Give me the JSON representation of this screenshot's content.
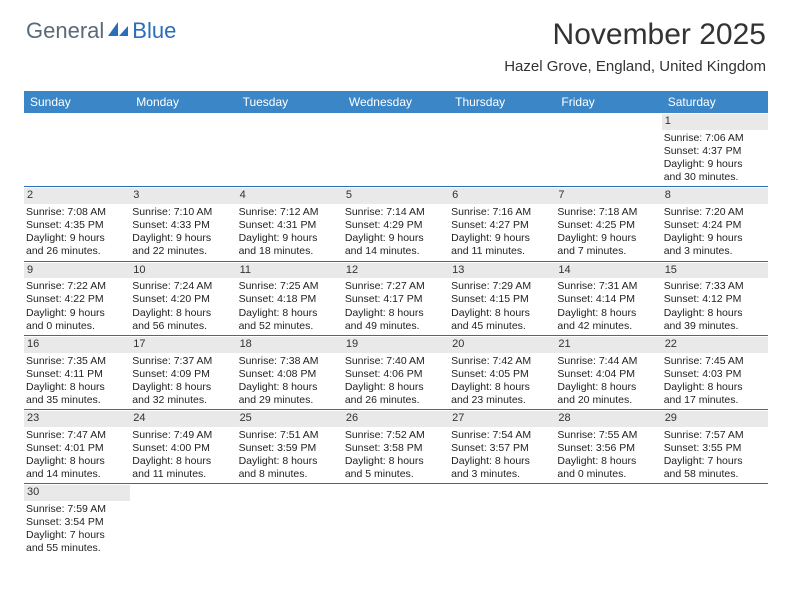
{
  "logo": {
    "general": "General",
    "blue": "Blue"
  },
  "title": "November 2025",
  "location": "Hazel Grove, England, United Kingdom",
  "colors": {
    "header_bg": "#3b86c7",
    "row_border": "#2a6db8",
    "daynum_bg": "#e9e9e9",
    "text": "#222222",
    "logo_gray": "#5a6a78",
    "logo_blue": "#2a6db8"
  },
  "day_headers": [
    "Sunday",
    "Monday",
    "Tuesday",
    "Wednesday",
    "Thursday",
    "Friday",
    "Saturday"
  ],
  "weeks": [
    [
      null,
      null,
      null,
      null,
      null,
      null,
      {
        "n": "1",
        "sr": "Sunrise: 7:06 AM",
        "ss": "Sunset: 4:37 PM",
        "d1": "Daylight: 9 hours",
        "d2": "and 30 minutes."
      }
    ],
    [
      {
        "n": "2",
        "sr": "Sunrise: 7:08 AM",
        "ss": "Sunset: 4:35 PM",
        "d1": "Daylight: 9 hours",
        "d2": "and 26 minutes."
      },
      {
        "n": "3",
        "sr": "Sunrise: 7:10 AM",
        "ss": "Sunset: 4:33 PM",
        "d1": "Daylight: 9 hours",
        "d2": "and 22 minutes."
      },
      {
        "n": "4",
        "sr": "Sunrise: 7:12 AM",
        "ss": "Sunset: 4:31 PM",
        "d1": "Daylight: 9 hours",
        "d2": "and 18 minutes."
      },
      {
        "n": "5",
        "sr": "Sunrise: 7:14 AM",
        "ss": "Sunset: 4:29 PM",
        "d1": "Daylight: 9 hours",
        "d2": "and 14 minutes."
      },
      {
        "n": "6",
        "sr": "Sunrise: 7:16 AM",
        "ss": "Sunset: 4:27 PM",
        "d1": "Daylight: 9 hours",
        "d2": "and 11 minutes."
      },
      {
        "n": "7",
        "sr": "Sunrise: 7:18 AM",
        "ss": "Sunset: 4:25 PM",
        "d1": "Daylight: 9 hours",
        "d2": "and 7 minutes."
      },
      {
        "n": "8",
        "sr": "Sunrise: 7:20 AM",
        "ss": "Sunset: 4:24 PM",
        "d1": "Daylight: 9 hours",
        "d2": "and 3 minutes."
      }
    ],
    [
      {
        "n": "9",
        "sr": "Sunrise: 7:22 AM",
        "ss": "Sunset: 4:22 PM",
        "d1": "Daylight: 9 hours",
        "d2": "and 0 minutes."
      },
      {
        "n": "10",
        "sr": "Sunrise: 7:24 AM",
        "ss": "Sunset: 4:20 PM",
        "d1": "Daylight: 8 hours",
        "d2": "and 56 minutes."
      },
      {
        "n": "11",
        "sr": "Sunrise: 7:25 AM",
        "ss": "Sunset: 4:18 PM",
        "d1": "Daylight: 8 hours",
        "d2": "and 52 minutes."
      },
      {
        "n": "12",
        "sr": "Sunrise: 7:27 AM",
        "ss": "Sunset: 4:17 PM",
        "d1": "Daylight: 8 hours",
        "d2": "and 49 minutes."
      },
      {
        "n": "13",
        "sr": "Sunrise: 7:29 AM",
        "ss": "Sunset: 4:15 PM",
        "d1": "Daylight: 8 hours",
        "d2": "and 45 minutes."
      },
      {
        "n": "14",
        "sr": "Sunrise: 7:31 AM",
        "ss": "Sunset: 4:14 PM",
        "d1": "Daylight: 8 hours",
        "d2": "and 42 minutes."
      },
      {
        "n": "15",
        "sr": "Sunrise: 7:33 AM",
        "ss": "Sunset: 4:12 PM",
        "d1": "Daylight: 8 hours",
        "d2": "and 39 minutes."
      }
    ],
    [
      {
        "n": "16",
        "sr": "Sunrise: 7:35 AM",
        "ss": "Sunset: 4:11 PM",
        "d1": "Daylight: 8 hours",
        "d2": "and 35 minutes."
      },
      {
        "n": "17",
        "sr": "Sunrise: 7:37 AM",
        "ss": "Sunset: 4:09 PM",
        "d1": "Daylight: 8 hours",
        "d2": "and 32 minutes."
      },
      {
        "n": "18",
        "sr": "Sunrise: 7:38 AM",
        "ss": "Sunset: 4:08 PM",
        "d1": "Daylight: 8 hours",
        "d2": "and 29 minutes."
      },
      {
        "n": "19",
        "sr": "Sunrise: 7:40 AM",
        "ss": "Sunset: 4:06 PM",
        "d1": "Daylight: 8 hours",
        "d2": "and 26 minutes."
      },
      {
        "n": "20",
        "sr": "Sunrise: 7:42 AM",
        "ss": "Sunset: 4:05 PM",
        "d1": "Daylight: 8 hours",
        "d2": "and 23 minutes."
      },
      {
        "n": "21",
        "sr": "Sunrise: 7:44 AM",
        "ss": "Sunset: 4:04 PM",
        "d1": "Daylight: 8 hours",
        "d2": "and 20 minutes."
      },
      {
        "n": "22",
        "sr": "Sunrise: 7:45 AM",
        "ss": "Sunset: 4:03 PM",
        "d1": "Daylight: 8 hours",
        "d2": "and 17 minutes."
      }
    ],
    [
      {
        "n": "23",
        "sr": "Sunrise: 7:47 AM",
        "ss": "Sunset: 4:01 PM",
        "d1": "Daylight: 8 hours",
        "d2": "and 14 minutes."
      },
      {
        "n": "24",
        "sr": "Sunrise: 7:49 AM",
        "ss": "Sunset: 4:00 PM",
        "d1": "Daylight: 8 hours",
        "d2": "and 11 minutes."
      },
      {
        "n": "25",
        "sr": "Sunrise: 7:51 AM",
        "ss": "Sunset: 3:59 PM",
        "d1": "Daylight: 8 hours",
        "d2": "and 8 minutes."
      },
      {
        "n": "26",
        "sr": "Sunrise: 7:52 AM",
        "ss": "Sunset: 3:58 PM",
        "d1": "Daylight: 8 hours",
        "d2": "and 5 minutes."
      },
      {
        "n": "27",
        "sr": "Sunrise: 7:54 AM",
        "ss": "Sunset: 3:57 PM",
        "d1": "Daylight: 8 hours",
        "d2": "and 3 minutes."
      },
      {
        "n": "28",
        "sr": "Sunrise: 7:55 AM",
        "ss": "Sunset: 3:56 PM",
        "d1": "Daylight: 8 hours",
        "d2": "and 0 minutes."
      },
      {
        "n": "29",
        "sr": "Sunrise: 7:57 AM",
        "ss": "Sunset: 3:55 PM",
        "d1": "Daylight: 7 hours",
        "d2": "and 58 minutes."
      }
    ],
    [
      {
        "n": "30",
        "sr": "Sunrise: 7:59 AM",
        "ss": "Sunset: 3:54 PM",
        "d1": "Daylight: 7 hours",
        "d2": "and 55 minutes."
      },
      null,
      null,
      null,
      null,
      null,
      null
    ]
  ]
}
